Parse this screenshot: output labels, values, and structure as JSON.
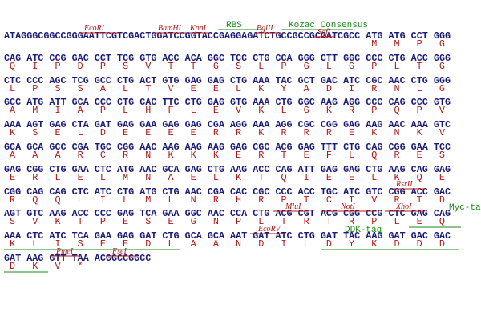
{
  "lines": [
    {
      "dna": "ATAGGGCGGCCGGGAATTCGTCGACTGGATCCGGTACCGAGGAGATCTGCCGCCGCGATCGCC ATG ATG CCT GGG",
      "protein": [
        "M",
        "M",
        "P",
        "G"
      ],
      "features": [
        "EcoRI",
        "BamHI",
        "KpnI",
        "RBS",
        "BglII",
        "Kozac Consensus",
        "SgfI"
      ]
    },
    {
      "dna": "CAG ATC CCG GAC CCT TCG GTG ACC ACA GGC TCC CTG CCA GGG CTT GGC CCC CTG ACC GGG",
      "protein": [
        "Q",
        "I",
        "P",
        "D",
        "P",
        "S",
        "V",
        "T",
        "T",
        "G",
        "S",
        "L",
        "P",
        "G",
        "L",
        "G",
        "P",
        "L",
        "T",
        "G"
      ],
      "features": []
    },
    {
      "dna": "CTC CCC AGC TCG GCC CTG ACT GTG GAG GAG CTG AAA TAC GCT GAC ATC CGC AAC CTG GGG",
      "protein": [
        "L",
        "P",
        "S",
        "S",
        "A",
        "L",
        "T",
        "V",
        "E",
        "E",
        "L",
        "K",
        "Y",
        "A",
        "D",
        "I",
        "R",
        "N",
        "L",
        "G"
      ],
      "features": []
    },
    {
      "dna": "GCC ATG ATT GCA CCC CTG CAC TTC CTG GAG GTG AAA CTG GGC AAG AGG CCC CAG CCC GTG",
      "protein": [
        "A",
        "M",
        "I",
        "A",
        "P",
        "L",
        "H",
        "F",
        "L",
        "E",
        "V",
        "K",
        "L",
        "G",
        "K",
        "R",
        "P",
        "Q",
        "P",
        "V"
      ],
      "features": []
    },
    {
      "dna": "AAA AGT GAG CTA GAT GAG GAA GAG GAG CGA AGG AAA AGG CGC CGG GAG AAG AAC AAA GTC",
      "protein": [
        "K",
        "S",
        "E",
        "L",
        "D",
        "E",
        "E",
        "E",
        "E",
        "R",
        "R",
        "K",
        "R",
        "R",
        "R",
        "E",
        "K",
        "N",
        "K",
        "V"
      ],
      "features": []
    },
    {
      "dna": "GCA GCA GCC CGA TGC CGG AAC AAG AAG AAG GAG CGC ACG GAG TTT CTG CAG CGG GAA TCC",
      "protein": [
        "A",
        "A",
        "A",
        "R",
        "C",
        "R",
        "N",
        "K",
        "K",
        "K",
        "E",
        "R",
        "T",
        "E",
        "F",
        "L",
        "Q",
        "R",
        "E",
        "S"
      ],
      "features": []
    },
    {
      "dna": "GAG CGG CTG GAA CTC ATG AAC GCA GAG CTG AAG ACC CAG ATT GAG GAG CTG AAG CAG GAG",
      "protein": [
        "E",
        "R",
        "L",
        "E",
        "L",
        "M",
        "N",
        "A",
        "E",
        "L",
        "K",
        "T",
        "Q",
        "I",
        "E",
        "E",
        "L",
        "K",
        "Q",
        "E"
      ],
      "features": []
    },
    {
      "dna": "CGG CAG CAG CTC ATC CTG ATG CTG AAC CGA CAC CGC CCC ACC TGC ATC GTC CGG ACC GAC",
      "protein": [
        "R",
        "Q",
        "Q",
        "L",
        "I",
        "L",
        "M",
        "L",
        "N",
        "R",
        "H",
        "R",
        "P",
        "T",
        "C",
        "I",
        "V",
        "R",
        "T",
        "D"
      ],
      "features": [
        "RsrII"
      ]
    },
    {
      "dna": "AGT GTC AAG ACC CCC GAG TCA GAA GGC AAC CCA CTG ACG CGT ACG CGG CCG CTC GAG CAG",
      "protein": [
        "S",
        "V",
        "K",
        "T",
        "P",
        "E",
        "S",
        "E",
        "G",
        "N",
        "P",
        "L",
        "T",
        "R",
        "T",
        "R",
        "P",
        "L",
        "E",
        "Q"
      ],
      "features": [
        "MluI",
        "NotI",
        "XhoI",
        "Myc-tag"
      ]
    },
    {
      "dna": "AAA CTC ATC TCA GAA GAG GAT CTG GCA GCA AAT GAT ATC CTG GAT TAC AAG GAT GAC GAC",
      "protein": [
        "K",
        "L",
        "I",
        "S",
        "E",
        "E",
        "D",
        "L",
        "A",
        "A",
        "N",
        "D",
        "I",
        "L",
        "D",
        "Y",
        "K",
        "D",
        "D",
        "D"
      ],
      "features": [
        "EcoRV",
        "DDK-tag"
      ]
    },
    {
      "dna": "GAT AAG GTT TAA ACGGCCGGCC",
      "protein": [
        "D",
        "K",
        "V",
        "*"
      ],
      "features": [
        "PmeI",
        "FseI"
      ]
    }
  ]
}
